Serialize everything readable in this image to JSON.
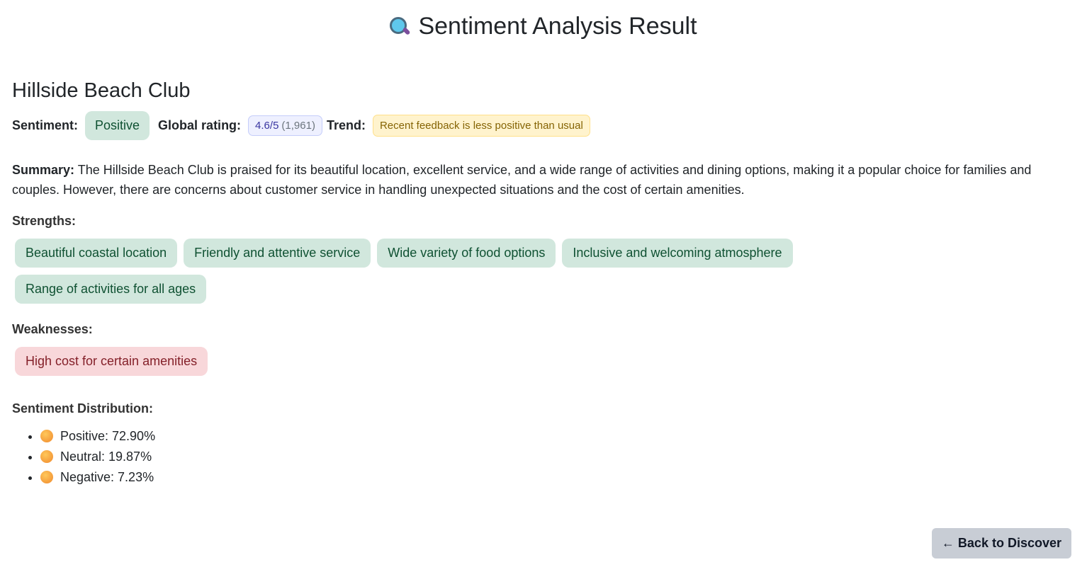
{
  "header": {
    "title": "Sentiment Analysis Result",
    "icon": "magnifying-glass-icon"
  },
  "hotel": {
    "name": "Hillside Beach Club"
  },
  "meta": {
    "sentiment_label": "Sentiment:",
    "sentiment": "Positive",
    "rating_label": "Global rating:",
    "rating": "4.6/5",
    "rating_count": "(1,961)",
    "trend_label": "Trend:",
    "trend": "Recent feedback is less positive than usual"
  },
  "summary": {
    "label": "Summary:",
    "text": " The Hillside Beach Club is praised for its beautiful location, excellent service, and a wide range of activities and dining options, making it a popular choice for families and couples. However, there are concerns about customer service in handling unexpected situations and the cost of certain amenities."
  },
  "strengths": {
    "label": "Strengths:",
    "items": [
      "Beautiful coastal location",
      "Friendly and attentive service",
      "Wide variety of food options",
      "Inclusive and welcoming atmosphere",
      "Range of activities for all ages"
    ]
  },
  "weaknesses": {
    "label": "Weaknesses:",
    "items": [
      "High cost for certain amenities"
    ]
  },
  "distribution": {
    "label": "Sentiment Distribution:",
    "items": [
      {
        "text": "Positive: 72.90%",
        "icon": "smiling-face-icon"
      },
      {
        "text": "Neutral: 19.87%",
        "icon": "neutral-face-icon"
      },
      {
        "text": "Negative: 7.23%",
        "icon": "disappointed-face-icon"
      }
    ]
  },
  "actions": {
    "back": "← Back to Discover"
  },
  "colors": {
    "positive_bg": "#d1e7dd",
    "positive_fg": "#0f5132",
    "negative_bg": "#f8d7da",
    "negative_fg": "#842029",
    "trend_bg": "#fff3cd"
  }
}
